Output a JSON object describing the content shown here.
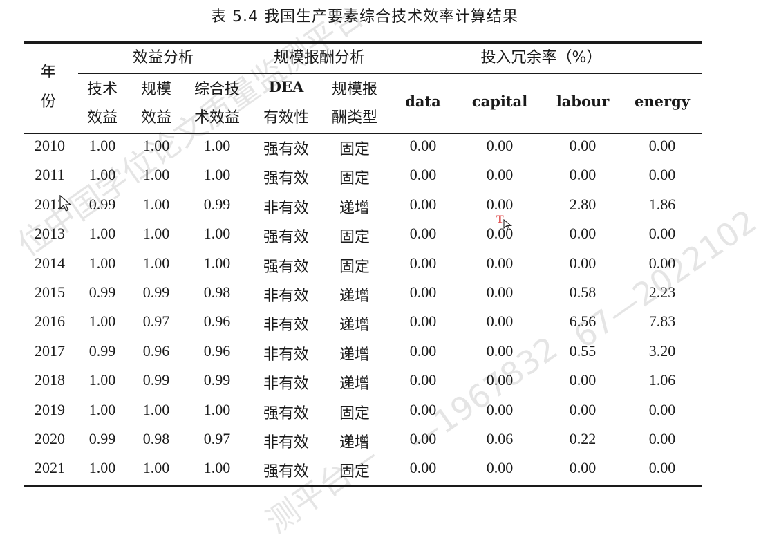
{
  "title": "表 5.4  我国生产要素综合技术效率计算结果",
  "header": {
    "year_line1": "年",
    "year_line2": "份",
    "group_benefit": "效益分析",
    "group_scale": "规模报酬分析",
    "group_redundancy": "投入冗余率（%）",
    "tech_line1": "技术",
    "tech_line2": "效益",
    "scale_line1": "规模",
    "scale_line2": "效益",
    "comp_line1": "综合技",
    "comp_line2": "术效益",
    "dea_line1": "DEA",
    "dea_line2": "有效性",
    "type_line1": "规模报",
    "type_line2": "酬类型",
    "data": "data",
    "capital": "capital",
    "labour": "labour",
    "energy": "energy"
  },
  "rows": [
    [
      "2010",
      "1.00",
      "1.00",
      "1.00",
      "强有效",
      "固定",
      "0.00",
      "0.00",
      "0.00",
      "0.00"
    ],
    [
      "2011",
      "1.00",
      "1.00",
      "1.00",
      "强有效",
      "固定",
      "0.00",
      "0.00",
      "0.00",
      "0.00"
    ],
    [
      "2012",
      "0.99",
      "1.00",
      "0.99",
      "非有效",
      "递增",
      "0.00",
      "0.00",
      "2.80",
      "1.86"
    ],
    [
      "2013",
      "1.00",
      "1.00",
      "1.00",
      "强有效",
      "固定",
      "0.00",
      "0.00",
      "0.00",
      "0.00"
    ],
    [
      "2014",
      "1.00",
      "1.00",
      "1.00",
      "强有效",
      "固定",
      "0.00",
      "0.00",
      "0.00",
      "0.00"
    ],
    [
      "2015",
      "0.99",
      "0.99",
      "0.98",
      "非有效",
      "递增",
      "0.00",
      "0.00",
      "0.58",
      "2.23"
    ],
    [
      "2016",
      "1.00",
      "0.97",
      "0.96",
      "非有效",
      "递增",
      "0.00",
      "0.00",
      "6.56",
      "7.83"
    ],
    [
      "2017",
      "0.99",
      "0.96",
      "0.96",
      "非有效",
      "递增",
      "0.00",
      "0.00",
      "0.55",
      "3.20"
    ],
    [
      "2018",
      "1.00",
      "0.99",
      "0.99",
      "非有效",
      "递增",
      "0.00",
      "0.00",
      "0.00",
      "1.06"
    ],
    [
      "2019",
      "1.00",
      "1.00",
      "1.00",
      "强有效",
      "固定",
      "0.00",
      "0.00",
      "0.00",
      "0.00"
    ],
    [
      "2020",
      "0.99",
      "0.98",
      "0.97",
      "非有效",
      "递增",
      "0.00",
      "0.06",
      "0.22",
      "0.00"
    ],
    [
      "2021",
      "1.00",
      "1.00",
      "1.00",
      "强有效",
      "固定",
      "0.00",
      "0.00",
      "0.00",
      "0.00"
    ]
  ],
  "watermark": {
    "text1": "位中国学位论文质量监测平台",
    "text2": "—1967832",
    "text3": "67—2022102",
    "text4": "测平台—"
  },
  "cursor_glyph": "T"
}
